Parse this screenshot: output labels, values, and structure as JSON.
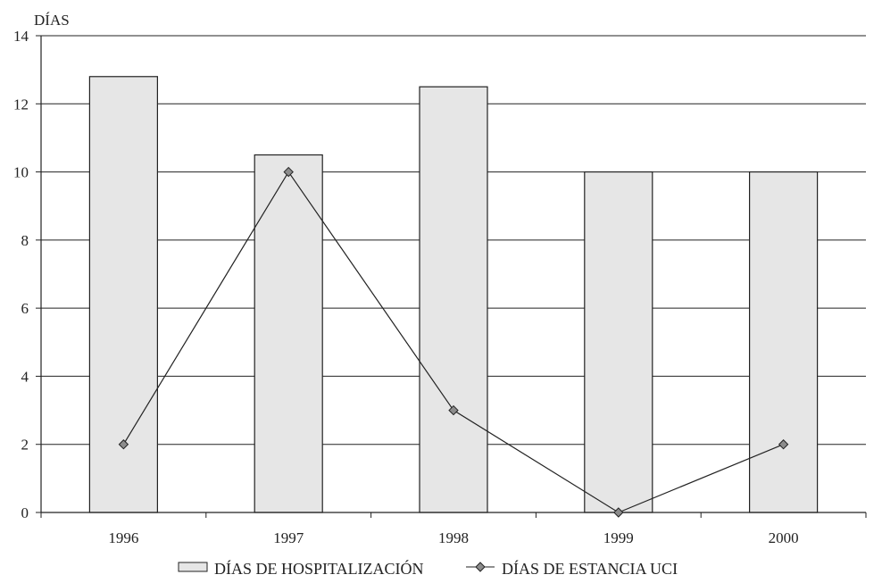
{
  "chart_data": {
    "type": "bar",
    "ylabel": "DÍAS",
    "xlabel": "",
    "ylim": [
      0,
      14
    ],
    "yticks": [
      0,
      2,
      4,
      6,
      8,
      10,
      12,
      14
    ],
    "grid": true,
    "legend_position": "bottom",
    "categories": [
      "1996",
      "1997",
      "1998",
      "1999",
      "2000"
    ],
    "series": [
      {
        "name": "DÍAS DE HOSPITALIZACIÓN",
        "type": "bar",
        "values": [
          12.8,
          10.5,
          12.5,
          10,
          10
        ],
        "color": "#e6e6e6"
      },
      {
        "name": "DÍAS DE ESTANCIA UCI",
        "type": "line",
        "values": [
          2,
          10,
          3,
          0,
          2
        ],
        "color": "#222222",
        "marker_color": "#8c8c8c"
      }
    ]
  }
}
